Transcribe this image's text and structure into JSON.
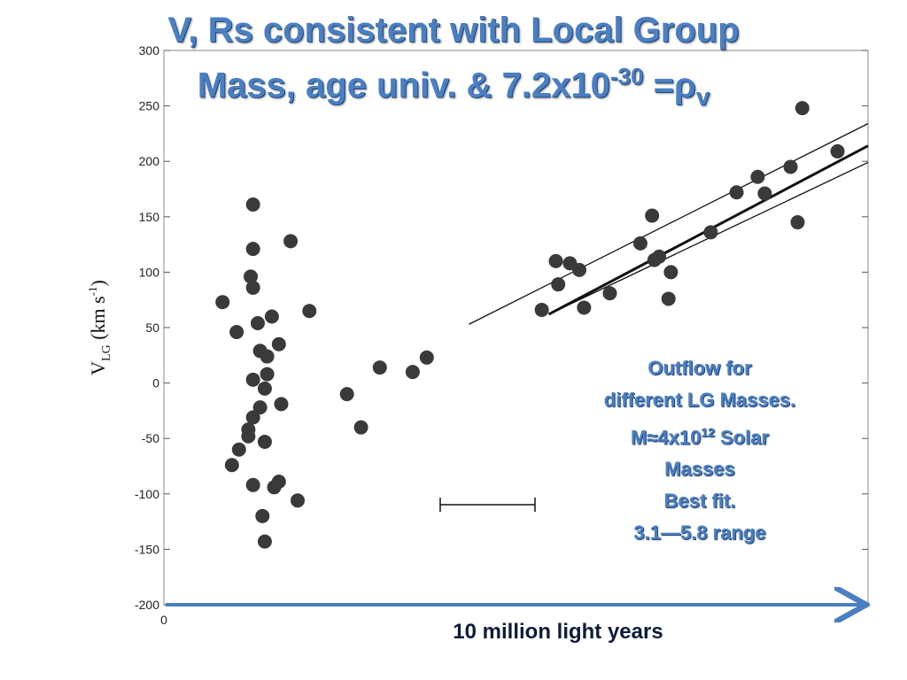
{
  "title": {
    "line1": "V, Rs consistent with Local Group",
    "line2_main": "Mass, age univ. & 7.2x10",
    "line2_sup": "-30",
    "line2_mid": " =ρ",
    "line2_sub": "v"
  },
  "annotation": {
    "line1": "Outflow for",
    "line2": "different LG Masses.",
    "line3_pre": "M≈4x10",
    "line3_sup": "12",
    "line3_post": " Solar",
    "line4": "Masses",
    "line5": "Best fit.",
    "line6": "3.1—5.8 range"
  },
  "x_caption": "10 million light years",
  "colors": {
    "title": "#4a7fc1",
    "points": "#3a3a3a",
    "arrow": "#4a7fc1",
    "caption": "#0d1c3a"
  },
  "chart_data": {
    "type": "scatter",
    "title": "V, Rs consistent with Local Group Mass, age univ. & 7.2x10-30 =ρv",
    "ylabel": "V_LG (km s^-1)",
    "ylabel_parts": {
      "v": "V",
      "sub": "LG",
      "units_pre": " (km s",
      "units_sup": "-1",
      "units_post": ")"
    },
    "xlabel": "10 million light years",
    "xlim": [
      0,
      3
    ],
    "ylim": [
      -200,
      300
    ],
    "yticks": [
      -200,
      -150,
      -100,
      -50,
      0,
      50,
      100,
      150,
      200,
      250,
      300
    ],
    "ytick_labels": [
      "-200",
      "-150",
      "-100",
      "-50",
      "0",
      "50",
      "100",
      "150",
      "200",
      "250",
      "300"
    ],
    "xtick_labels": [
      "0"
    ],
    "points": [
      {
        "x": 0.25,
        "y": 73
      },
      {
        "x": 0.31,
        "y": 46
      },
      {
        "x": 0.38,
        "y": 161
      },
      {
        "x": 0.38,
        "y": 121
      },
      {
        "x": 0.37,
        "y": 96
      },
      {
        "x": 0.38,
        "y": 86
      },
      {
        "x": 0.4,
        "y": 54
      },
      {
        "x": 0.46,
        "y": 60
      },
      {
        "x": 0.54,
        "y": 128
      },
      {
        "x": 0.62,
        "y": 65
      },
      {
        "x": 0.41,
        "y": 29
      },
      {
        "x": 0.44,
        "y": 24
      },
      {
        "x": 0.49,
        "y": 35
      },
      {
        "x": 0.38,
        "y": 3
      },
      {
        "x": 0.44,
        "y": 8
      },
      {
        "x": 0.43,
        "y": -5
      },
      {
        "x": 0.41,
        "y": -22
      },
      {
        "x": 0.5,
        "y": -19
      },
      {
        "x": 0.38,
        "y": -31
      },
      {
        "x": 0.36,
        "y": -42
      },
      {
        "x": 0.36,
        "y": -48
      },
      {
        "x": 0.43,
        "y": -53
      },
      {
        "x": 0.32,
        "y": -60
      },
      {
        "x": 0.29,
        "y": -74
      },
      {
        "x": 0.38,
        "y": -92
      },
      {
        "x": 0.49,
        "y": -89
      },
      {
        "x": 0.47,
        "y": -94
      },
      {
        "x": 0.57,
        "y": -106
      },
      {
        "x": 0.42,
        "y": -120
      },
      {
        "x": 0.43,
        "y": -143
      },
      {
        "x": 0.78,
        "y": -10
      },
      {
        "x": 0.84,
        "y": -40
      },
      {
        "x": 0.92,
        "y": 14
      },
      {
        "x": 1.06,
        "y": 10
      },
      {
        "x": 1.12,
        "y": 23
      },
      {
        "x": 1.61,
        "y": 66
      },
      {
        "x": 1.67,
        "y": 110
      },
      {
        "x": 1.68,
        "y": 89
      },
      {
        "x": 1.73,
        "y": 108
      },
      {
        "x": 1.77,
        "y": 102
      },
      {
        "x": 1.79,
        "y": 68
      },
      {
        "x": 1.9,
        "y": 81
      },
      {
        "x": 2.03,
        "y": 126
      },
      {
        "x": 2.08,
        "y": 151
      },
      {
        "x": 2.09,
        "y": 111
      },
      {
        "x": 2.11,
        "y": 114
      },
      {
        "x": 2.16,
        "y": 100
      },
      {
        "x": 2.15,
        "y": 76
      },
      {
        "x": 2.33,
        "y": 136
      },
      {
        "x": 2.44,
        "y": 172
      },
      {
        "x": 2.53,
        "y": 186
      },
      {
        "x": 2.56,
        "y": 171
      },
      {
        "x": 2.67,
        "y": 195
      },
      {
        "x": 2.7,
        "y": 145
      },
      {
        "x": 2.72,
        "y": 248
      },
      {
        "x": 2.87,
        "y": 209
      }
    ],
    "lines": [
      {
        "role": "best-fit",
        "x": [
          1.64,
          3.0
        ],
        "y": [
          62,
          214
        ]
      },
      {
        "role": "upper",
        "x": [
          1.3,
          3.0
        ],
        "y": [
          53,
          234
        ]
      },
      {
        "role": "lower",
        "x": [
          1.64,
          3.0
        ],
        "y": [
          62,
          199
        ]
      }
    ]
  }
}
